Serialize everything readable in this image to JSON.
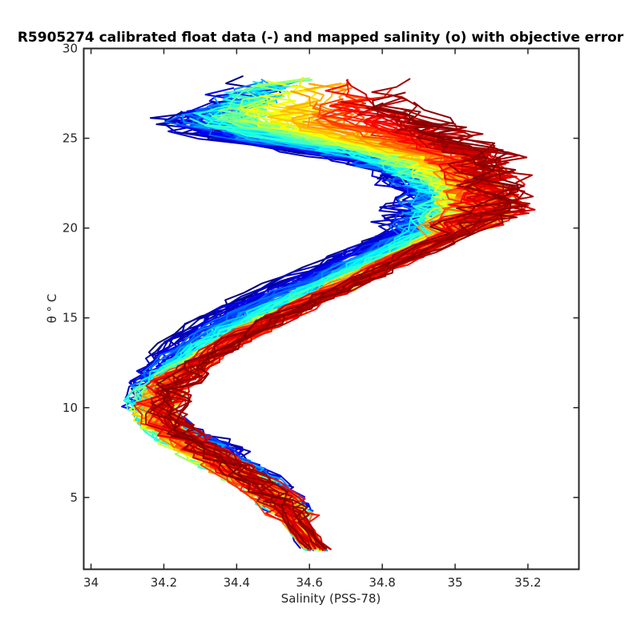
{
  "chart_data": {
    "type": "line",
    "title": "R5905274 calibrated float data (-) and mapped salinity (o) with objective error",
    "xlabel": "Salinity (PSS-78)",
    "ylabel": "θ ° C",
    "xlim": [
      33.98,
      35.34
    ],
    "ylim": [
      1.0,
      30.0
    ],
    "xticks": [
      34,
      34.2,
      34.4,
      34.6,
      34.8,
      35,
      35.2
    ],
    "xtick_labels": [
      "34",
      "34.2",
      "34.4",
      "34.6",
      "34.8",
      "35",
      "35.2"
    ],
    "yticks": [
      5,
      10,
      15,
      20,
      25,
      30
    ],
    "ytick_labels": [
      "5",
      "10",
      "15",
      "20",
      "25",
      "30"
    ],
    "grid": false,
    "legend": "none",
    "colormap": "jet",
    "colormap_stops": [
      "#00007f",
      "#0000ff",
      "#00ffff",
      "#ffff00",
      "#ff0000",
      "#7f0000"
    ],
    "series_count": 140,
    "envelope": {
      "theta": [
        2.0,
        3.0,
        4.0,
        5.0,
        6.0,
        7.0,
        8.0,
        9.0,
        10.0,
        11.0,
        12.0,
        13.0,
        14.0,
        15.0,
        16.0,
        17.0,
        18.0,
        19.0,
        20.0,
        21.0,
        22.0,
        23.0,
        24.0,
        25.0,
        26.0,
        27.0,
        28.0
      ],
      "salinity_early": [
        34.62,
        34.58,
        34.55,
        34.52,
        34.48,
        34.42,
        34.35,
        34.22,
        34.16,
        34.15,
        34.15,
        34.19,
        34.24,
        34.31,
        34.41,
        34.52,
        34.63,
        34.73,
        34.84,
        34.88,
        34.9,
        34.85,
        34.68,
        34.35,
        34.22,
        34.4,
        34.45
      ],
      "salinity_mid": [
        34.62,
        34.58,
        34.55,
        34.51,
        34.42,
        34.33,
        34.25,
        34.18,
        34.16,
        34.19,
        34.24,
        34.32,
        34.4,
        34.5,
        34.6,
        34.7,
        34.8,
        34.9,
        34.98,
        35.02,
        35.02,
        34.95,
        34.85,
        34.6,
        34.4,
        34.42,
        34.5
      ],
      "salinity_late": [
        34.63,
        34.59,
        34.55,
        34.51,
        34.44,
        34.38,
        34.3,
        34.22,
        34.2,
        34.22,
        34.27,
        34.34,
        34.42,
        34.52,
        34.62,
        34.73,
        34.83,
        34.94,
        35.04,
        35.12,
        35.12,
        35.12,
        35.1,
        35.02,
        34.92,
        34.86,
        34.82
      ]
    }
  }
}
